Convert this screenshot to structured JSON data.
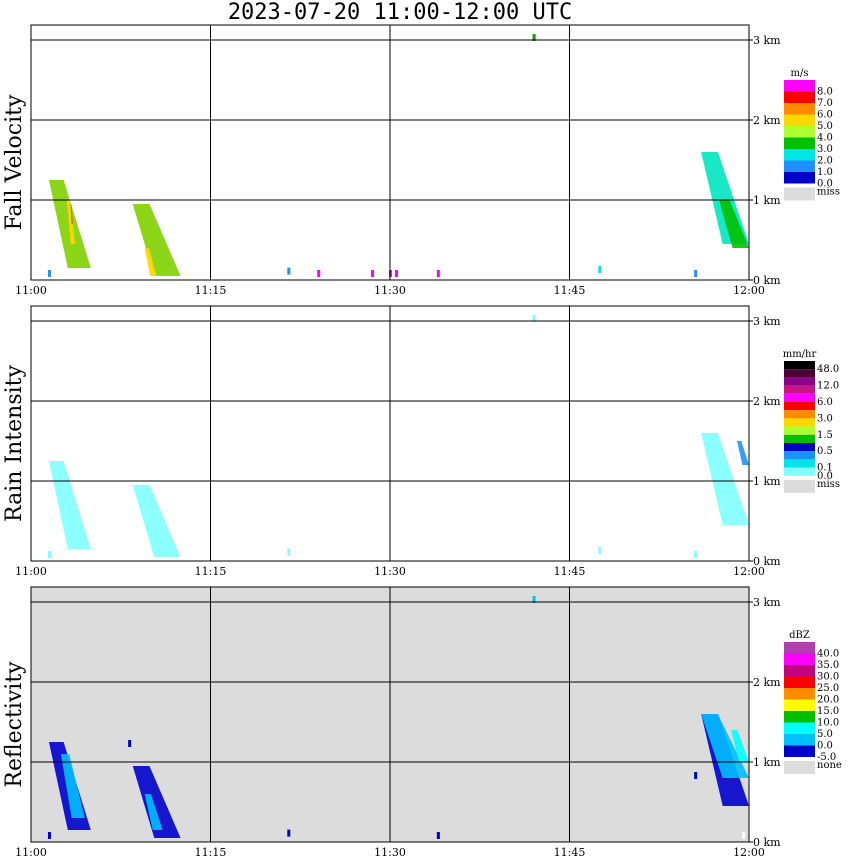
{
  "title": "2023-07-20  11:00-12:00 UTC",
  "time_ticks": [
    "11:00",
    "11:15",
    "11:30",
    "11:45",
    "12:00"
  ],
  "height_ticks": [
    "0 km",
    "1 km",
    "2 km",
    "3 km"
  ],
  "chart_data": [
    {
      "type": "heatmap",
      "ylabel": "Fall Velocity",
      "xlabel": "",
      "background": "#ffffff",
      "legend": {
        "unit": "m/s",
        "levels": [
          "8.0",
          "7.0",
          "6.0",
          "5.0",
          "4.0",
          "3.0",
          "2.0",
          "1.0",
          "0.0"
        ],
        "colors": [
          "#ff00ff",
          "#ff0000",
          "#ff8c00",
          "#ffd700",
          "#adff2f",
          "#00c000",
          "#00e6e6",
          "#1e90ff",
          "#0000cd"
        ],
        "missing_label": "miss",
        "missing_color": "#dcdcdc"
      },
      "echoes": [
        {
          "t0": 1.5,
          "t1": 5.0,
          "h_top": 1.25,
          "h_bot": 0.15,
          "color": "#7fd000"
        },
        {
          "t0": 3.0,
          "t1": 3.7,
          "h_top": 1.0,
          "h_bot": 0.45,
          "color": "#ffd700"
        },
        {
          "t0": 3.3,
          "t1": 3.5,
          "h_top": 0.95,
          "h_bot": 0.7,
          "color": "#ff4500"
        },
        {
          "t0": 8.5,
          "t1": 12.5,
          "h_top": 0.95,
          "h_bot": 0.05,
          "color": "#7fd000"
        },
        {
          "t0": 9.5,
          "t1": 10.5,
          "h_top": 0.4,
          "h_bot": 0.05,
          "color": "#ffd700"
        },
        {
          "t0": 56.0,
          "t1": 60.0,
          "h_top": 1.6,
          "h_bot": 0.45,
          "color": "#00e6c0"
        },
        {
          "t0": 57.5,
          "t1": 60.0,
          "h_top": 1.0,
          "h_bot": 0.4,
          "color": "#00c000"
        }
      ],
      "speckles": [
        {
          "t": 1.5,
          "h": 0.05,
          "color": "#1e90ff"
        },
        {
          "t": 21.5,
          "h": 0.08,
          "color": "#1e90ff"
        },
        {
          "t": 24.0,
          "h": 0.05,
          "color": "#ff00ff"
        },
        {
          "t": 28.5,
          "h": 0.05,
          "color": "#ff00ff"
        },
        {
          "t": 30.0,
          "h": 0.05,
          "color": "#ff00ff"
        },
        {
          "t": 30.5,
          "h": 0.05,
          "color": "#ff00ff"
        },
        {
          "t": 34.0,
          "h": 0.05,
          "color": "#ff00ff"
        },
        {
          "t": 42.0,
          "h": 3.0,
          "color": "#00a000"
        },
        {
          "t": 47.5,
          "h": 0.1,
          "color": "#00e6e6"
        },
        {
          "t": 55.5,
          "h": 0.05,
          "color": "#1e90ff"
        }
      ]
    },
    {
      "type": "heatmap",
      "ylabel": "Rain Intensity",
      "xlabel": "",
      "background": "#ffffff",
      "legend": {
        "unit": "mm/hr",
        "levels": [
          "48.0",
          "",
          "12.0",
          "",
          "6.0",
          "",
          "3.0",
          "",
          "1.5",
          "",
          "0.5",
          "",
          "0.1",
          "0.0"
        ],
        "colors": [
          "#000000",
          "#4b0033",
          "#8b008b",
          "#c71585",
          "#ff00ff",
          "#ff0000",
          "#ff8c00",
          "#ffd700",
          "#adff2f",
          "#00c000",
          "#0000cd",
          "#1e90ff",
          "#00e6e6",
          "#80ffff"
        ],
        "missing_label": "miss",
        "missing_color": "#dcdcdc"
      },
      "echoes": [
        {
          "t0": 1.5,
          "t1": 5.0,
          "h_top": 1.25,
          "h_bot": 0.15,
          "color": "#80ffff"
        },
        {
          "t0": 8.5,
          "t1": 12.5,
          "h_top": 0.95,
          "h_bot": 0.05,
          "color": "#80ffff"
        },
        {
          "t0": 56.0,
          "t1": 60.0,
          "h_top": 1.6,
          "h_bot": 0.45,
          "color": "#80ffff"
        },
        {
          "t0": 59.0,
          "t1": 60.0,
          "h_top": 1.5,
          "h_bot": 1.2,
          "color": "#1e90ff"
        }
      ],
      "speckles": [
        {
          "t": 1.5,
          "h": 0.05,
          "color": "#80ffff"
        },
        {
          "t": 21.5,
          "h": 0.08,
          "color": "#80ffff"
        },
        {
          "t": 42.0,
          "h": 3.0,
          "color": "#80ffff"
        },
        {
          "t": 47.5,
          "h": 0.1,
          "color": "#80ffff"
        },
        {
          "t": 55.5,
          "h": 0.05,
          "color": "#80ffff"
        }
      ]
    },
    {
      "type": "heatmap",
      "ylabel": "Reflectivity",
      "xlabel": "",
      "background": "#dcdcdc",
      "legend": {
        "unit": "dBZ",
        "levels": [
          "40.0",
          "35.0",
          "30.0",
          "25.0",
          "20.0",
          "15.0",
          "10.0",
          "5.0",
          "0.0",
          "-5.0"
        ],
        "colors": [
          "#b040b0",
          "#ff00ff",
          "#c00080",
          "#ff0000",
          "#ff8c00",
          "#ffff00",
          "#00c000",
          "#00ffff",
          "#00bfff",
          "#0000cd"
        ],
        "missing_label": "none",
        "missing_color": "#dcdcdc"
      },
      "echoes": [
        {
          "t0": 1.5,
          "t1": 5.0,
          "h_top": 1.25,
          "h_bot": 0.15,
          "color": "#0000cd"
        },
        {
          "t0": 2.5,
          "t1": 4.5,
          "h_top": 1.1,
          "h_bot": 0.3,
          "color": "#00bfff"
        },
        {
          "t0": 8.5,
          "t1": 12.5,
          "h_top": 0.95,
          "h_bot": 0.05,
          "color": "#0000cd"
        },
        {
          "t0": 9.5,
          "t1": 11.0,
          "h_top": 0.6,
          "h_bot": 0.15,
          "color": "#00bfff"
        },
        {
          "t0": 56.0,
          "t1": 60.0,
          "h_top": 1.6,
          "h_bot": 0.45,
          "color": "#0000cd"
        },
        {
          "t0": 56.0,
          "t1": 60.0,
          "h_top": 1.6,
          "h_bot": 0.8,
          "color": "#00bfff"
        },
        {
          "t0": 58.5,
          "t1": 60.0,
          "h_top": 1.4,
          "h_bot": 1.0,
          "color": "#00ffff"
        }
      ],
      "speckles": [
        {
          "t": 1.5,
          "h": 0.05,
          "color": "#0000cd"
        },
        {
          "t": 8.2,
          "h": 1.2,
          "color": "#0000cd"
        },
        {
          "t": 21.5,
          "h": 0.08,
          "color": "#0000cd"
        },
        {
          "t": 34.0,
          "h": 0.05,
          "color": "#0000cd"
        },
        {
          "t": 42.0,
          "h": 3.0,
          "color": "#00bfff"
        },
        {
          "t": 55.5,
          "h": 0.8,
          "color": "#0000cd"
        },
        {
          "t": 59.5,
          "h": 0.05,
          "color": "#ffffff"
        }
      ]
    }
  ]
}
